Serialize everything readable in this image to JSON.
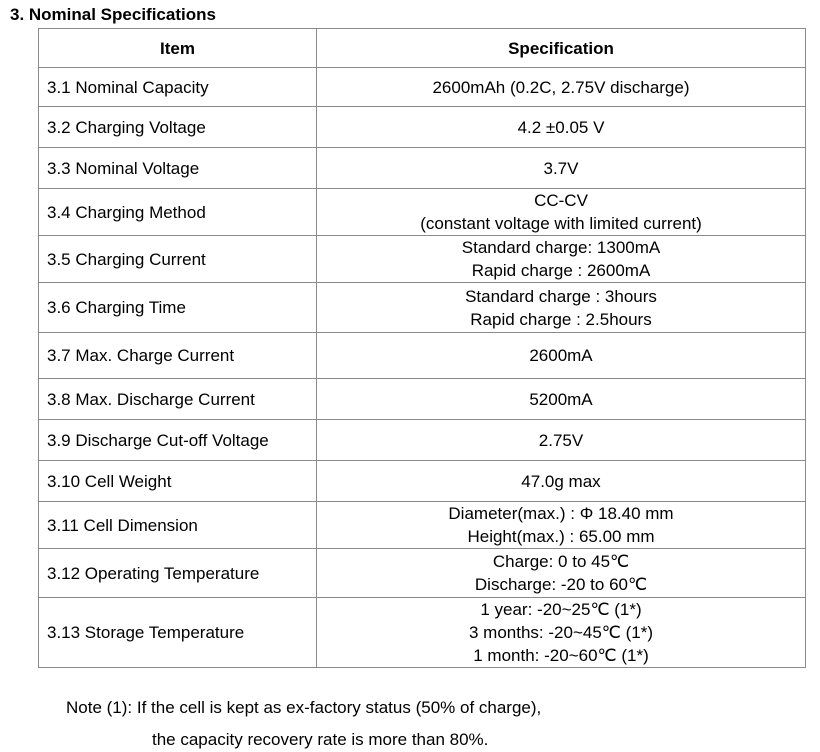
{
  "section_title": "3. Nominal Specifications",
  "table": {
    "headers": [
      "Item",
      "Specification"
    ],
    "rows": [
      {
        "item": "3.1 Nominal Capacity",
        "spec": [
          "2600mAh (0.2C, 2.75V discharge)"
        ]
      },
      {
        "item": "3.2 Charging Voltage",
        "spec": [
          "4.2  ±0.05 V"
        ]
      },
      {
        "item": "3.3 Nominal Voltage",
        "spec": [
          "3.7V"
        ]
      },
      {
        "item": "3.4 Charging Method",
        "spec": [
          "CC-CV",
          "(constant voltage with limited current)"
        ]
      },
      {
        "item": "3.5 Charging Current",
        "spec": [
          "Standard charge: 1300mA",
          "Rapid charge : 2600mA"
        ]
      },
      {
        "item": "3.6 Charging Time",
        "spec": [
          "Standard charge : 3hours",
          "Rapid charge : 2.5hours"
        ]
      },
      {
        "item": "3.7 Max. Charge Current",
        "spec": [
          "2600mA"
        ]
      },
      {
        "item": "3.8 Max. Discharge Current",
        "spec": [
          "5200mA"
        ]
      },
      {
        "item": "3.9 Discharge Cut-off Voltage",
        "spec": [
          "2.75V"
        ]
      },
      {
        "item": "3.10 Cell Weight",
        "spec": [
          "47.0g max"
        ]
      },
      {
        "item": "3.11 Cell Dimension",
        "spec": [
          "Diameter(max.) :  Φ 18.40 mm",
          "Height(max.) : 65.00 mm"
        ]
      },
      {
        "item": "3.12 Operating Temperature",
        "spec": [
          "Charge: 0 to 45℃",
          "Discharge: -20 to 60℃"
        ]
      },
      {
        "item": "3.13 Storage Temperature",
        "spec": [
          "1 year: -20~25℃  (1*)",
          "3 months: -20~45℃  (1*)",
          "1 month: -20~60℃  (1*)"
        ]
      }
    ]
  },
  "note": {
    "line1": "Note (1): If the cell is kept as ex-factory status (50% of charge),",
    "line2": "the capacity recovery rate is more than 80%."
  }
}
